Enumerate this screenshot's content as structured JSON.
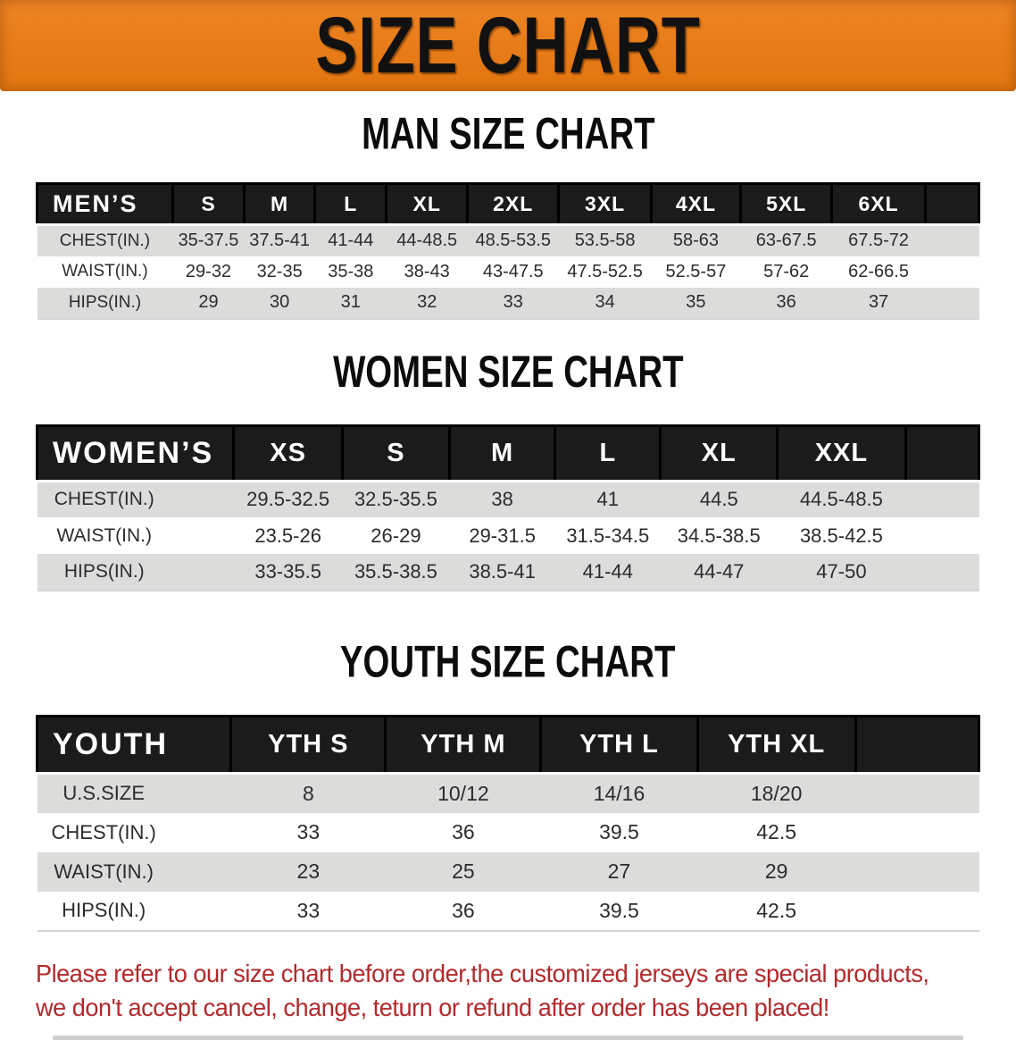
{
  "banner": {
    "title": "SIZE CHART"
  },
  "colors": {
    "banner_bg": "#EB7F22",
    "banner_text": "#111111",
    "header_bar_bg": "#1B1B1B",
    "header_bar_text": "#FFFFFF",
    "row_stripe_gray": "#DCDCDB",
    "note_red": "#B2292B"
  },
  "sections": [
    {
      "id": "men",
      "title": "MAN SIZE CHART",
      "header_label": "MEN’S",
      "sizes": [
        "S",
        "M",
        "L",
        "XL",
        "2XL",
        "3XL",
        "4XL",
        "5XL",
        "6XL"
      ],
      "rows": [
        {
          "label": "CHEST(IN.)",
          "values": [
            "35-37.5",
            "37.5-41",
            "41-44",
            "44-48.5",
            "48.5-53.5",
            "53.5-58",
            "58-63",
            "63-67.5",
            "67.5-72"
          ]
        },
        {
          "label": "WAIST(IN.)",
          "values": [
            "29-32",
            "32-35",
            "35-38",
            "38-43",
            "43-47.5",
            "47.5-52.5",
            "52.5-57",
            "57-62",
            "62-66.5"
          ]
        },
        {
          "label": "HIPS(IN.)",
          "values": [
            "29",
            "30",
            "31",
            "32",
            "33",
            "34",
            "35",
            "36",
            "37"
          ]
        }
      ]
    },
    {
      "id": "women",
      "title": "WOMEN SIZE CHART",
      "header_label": "WOMEN’S",
      "sizes": [
        "XS",
        "S",
        "M",
        "L",
        "XL",
        "XXL"
      ],
      "rows": [
        {
          "label": "CHEST(IN.)",
          "values": [
            "29.5-32.5",
            "32.5-35.5",
            "38",
            "41",
            "44.5",
            "44.5-48.5"
          ]
        },
        {
          "label": "WAIST(IN.)",
          "values": [
            "23.5-26",
            "26-29",
            "29-31.5",
            "31.5-34.5",
            "34.5-38.5",
            "38.5-42.5"
          ]
        },
        {
          "label": "HIPS(IN.)",
          "values": [
            "33-35.5",
            "35.5-38.5",
            "38.5-41",
            "41-44",
            "44-47",
            "47-50"
          ]
        }
      ]
    },
    {
      "id": "youth",
      "title": "YOUTH SIZE CHART",
      "header_label": "YOUTH",
      "sizes": [
        "YTH S",
        "YTH M",
        "YTH L",
        "YTH XL"
      ],
      "rows": [
        {
          "label": "U.S.SIZE",
          "values": [
            "8",
            "10/12",
            "14/16",
            "18/20"
          ]
        },
        {
          "label": "CHEST(IN.)",
          "values": [
            "33",
            "36",
            "39.5",
            "42.5"
          ]
        },
        {
          "label": "WAIST(IN.)",
          "values": [
            "23",
            "25",
            "27",
            "29"
          ]
        },
        {
          "label": "HIPS(IN.)",
          "values": [
            "33",
            "36",
            "39.5",
            "42.5"
          ]
        }
      ]
    }
  ],
  "footnote": {
    "line1": "Please refer to our size chart before order,the customized jerseys are special products,",
    "line2": "we don't accept cancel, change, teturn or refund after order has been placed!"
  }
}
